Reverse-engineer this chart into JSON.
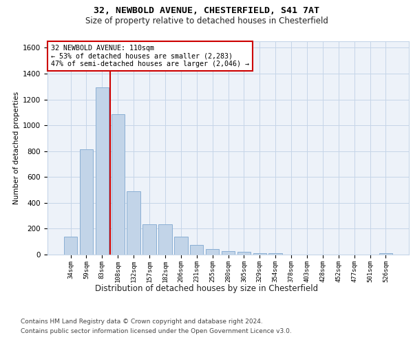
{
  "title1": "32, NEWBOLD AVENUE, CHESTERFIELD, S41 7AT",
  "title2": "Size of property relative to detached houses in Chesterfield",
  "xlabel": "Distribution of detached houses by size in Chesterfield",
  "ylabel": "Number of detached properties",
  "categories": [
    "34sqm",
    "59sqm",
    "83sqm",
    "108sqm",
    "132sqm",
    "157sqm",
    "182sqm",
    "206sqm",
    "231sqm",
    "255sqm",
    "280sqm",
    "305sqm",
    "329sqm",
    "354sqm",
    "378sqm",
    "403sqm",
    "428sqm",
    "452sqm",
    "477sqm",
    "501sqm",
    "526sqm"
  ],
  "values": [
    140,
    815,
    1295,
    1085,
    490,
    235,
    235,
    140,
    75,
    45,
    25,
    20,
    10,
    10,
    0,
    0,
    0,
    0,
    0,
    0,
    10
  ],
  "bar_color": "#c2d4e8",
  "bar_edge_color": "#8aafd4",
  "property_line_color": "#cc0000",
  "annotation_line1": "32 NEWBOLD AVENUE: 110sqm",
  "annotation_line2": "← 53% of detached houses are smaller (2,283)",
  "annotation_line3": "47% of semi-detached houses are larger (2,046) →",
  "ylim": [
    0,
    1650
  ],
  "yticks": [
    0,
    200,
    400,
    600,
    800,
    1000,
    1200,
    1400,
    1600
  ],
  "footer1": "Contains HM Land Registry data © Crown copyright and database right 2024.",
  "footer2": "Contains public sector information licensed under the Open Government Licence v3.0.",
  "plot_bg_color": "#edf2f9",
  "grid_color": "#c5d5e8"
}
